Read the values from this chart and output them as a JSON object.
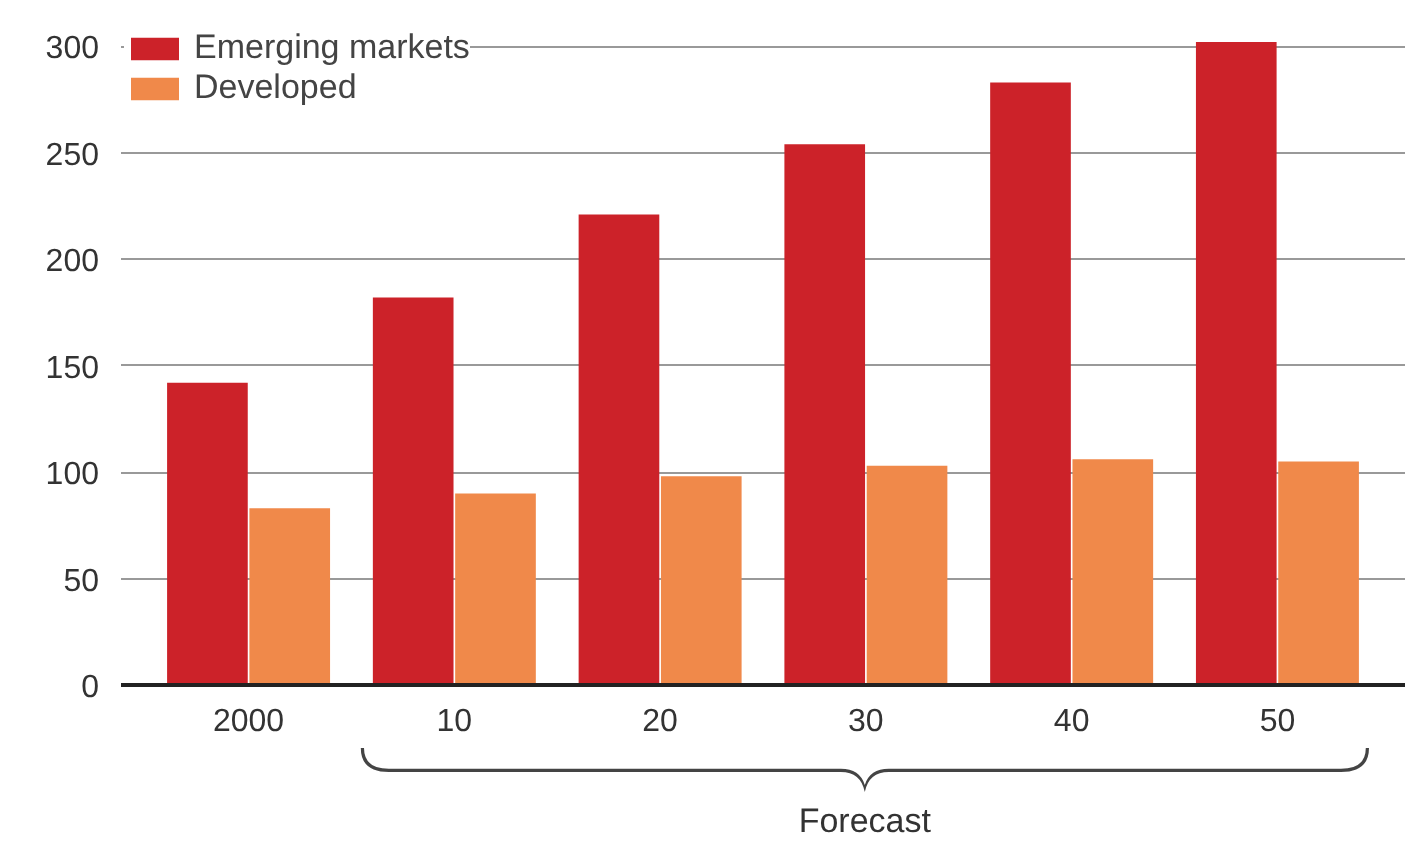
{
  "chart_data": {
    "type": "bar",
    "categories": [
      "2000",
      "10",
      "20",
      "30",
      "40",
      "50"
    ],
    "series": [
      {
        "name": "Emerging markets",
        "color": "#cc2229",
        "values": [
          142,
          182,
          221,
          254,
          283,
          302
        ]
      },
      {
        "name": "Developed",
        "color": "#f0894a",
        "values": [
          83,
          90,
          98,
          103,
          106,
          105
        ]
      }
    ],
    "ylim": [
      0,
      310
    ],
    "yticks": [
      0,
      50,
      100,
      150,
      200,
      250,
      300
    ],
    "grid": "y",
    "legend": "top left",
    "annotations": [
      "Forecast"
    ]
  }
}
